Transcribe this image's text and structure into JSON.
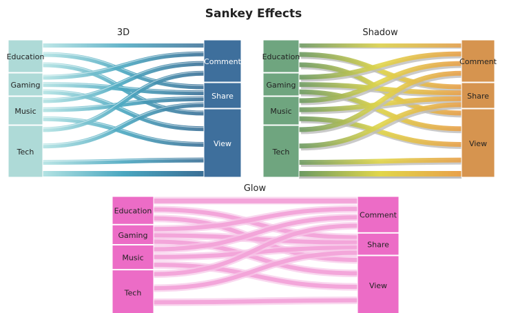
{
  "title": "Sankey Effects",
  "chart_data": [
    {
      "type": "sankey",
      "title": "3D",
      "effect": "3d",
      "sources": [
        "Education",
        "Gaming",
        "Music",
        "Tech"
      ],
      "targets": [
        "Comment",
        "Share",
        "View"
      ],
      "source_shares": [
        0.24,
        0.17,
        0.21,
        0.38
      ],
      "target_shares": [
        0.31,
        0.19,
        0.5
      ],
      "colors": {
        "source_node": "#aedad7",
        "target_node": "#3e6f9c",
        "link_left": "#b3e3e3",
        "link_right": "#3a6f96"
      }
    },
    {
      "type": "sankey",
      "title": "Shadow",
      "effect": "shadow",
      "sources": [
        "Education",
        "Gaming",
        "Music",
        "Tech"
      ],
      "targets": [
        "Comment",
        "Share",
        "View"
      ],
      "source_shares": [
        0.24,
        0.17,
        0.21,
        0.38
      ],
      "target_shares": [
        0.31,
        0.19,
        0.5
      ],
      "colors": {
        "source_node": "#6fa57f",
        "target_node": "#d6944f",
        "link_left": "#6c9a63",
        "link_mid": "#e1d64a",
        "link_right": "#e8a04a"
      }
    },
    {
      "type": "sankey",
      "title": "Glow",
      "effect": "glow",
      "sources": [
        "Education",
        "Gaming",
        "Music",
        "Tech"
      ],
      "targets": [
        "Comment",
        "Share",
        "View"
      ],
      "source_shares": [
        0.24,
        0.17,
        0.21,
        0.38
      ],
      "target_shares": [
        0.31,
        0.19,
        0.5
      ],
      "colors": {
        "source_node": "#ec6cc6",
        "target_node": "#ec6cc6",
        "link": "#f2a3d8"
      }
    }
  ]
}
